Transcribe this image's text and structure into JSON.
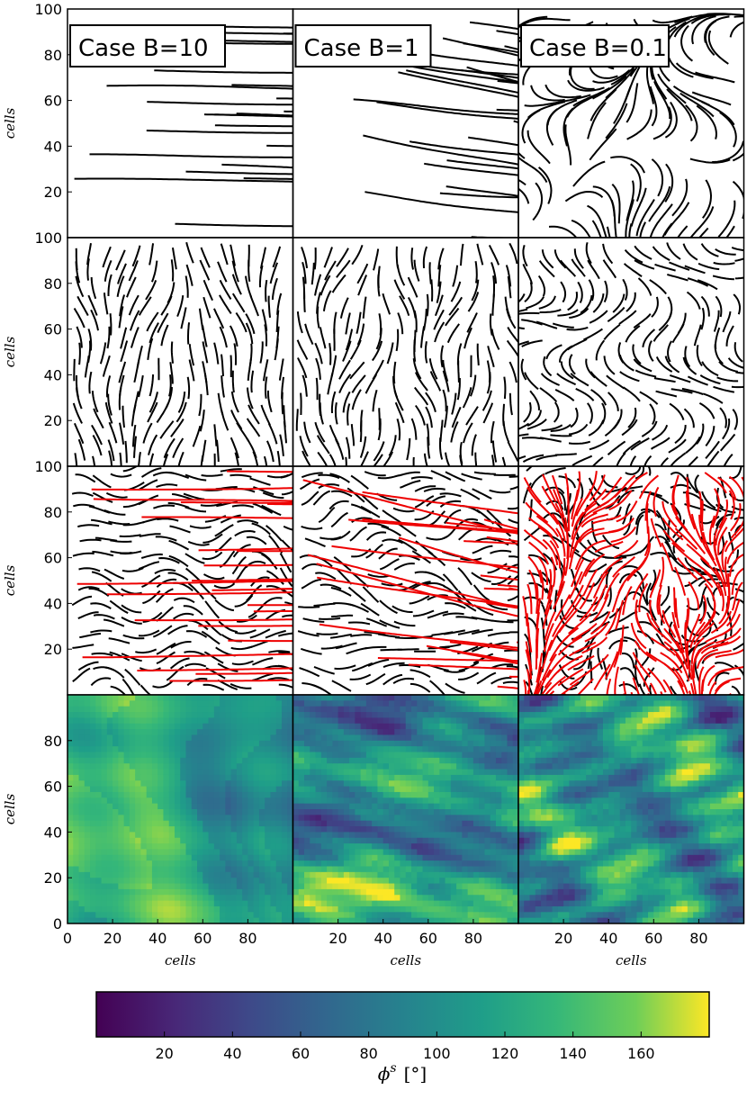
{
  "chart_data": {
    "type": "panel-grid",
    "columns": [
      {
        "title": "Case B=10"
      },
      {
        "title": "Case B=1"
      },
      {
        "title": "Case B=0.1"
      }
    ],
    "xlabel": "cells",
    "ylabel": "cells",
    "xlim": [
      0,
      100
    ],
    "ylim": [
      0,
      100
    ],
    "yticks": [
      20,
      40,
      60,
      80,
      100
    ],
    "heatmap_yticks": [
      0,
      20,
      40,
      60,
      80
    ],
    "heatmap_xticks_first": [
      0,
      20,
      40,
      60,
      80
    ],
    "heatmap_xticks": [
      20,
      40,
      60,
      80
    ],
    "colorbar": {
      "clim": [
        0,
        180
      ],
      "ticks": [
        20,
        40,
        60,
        80,
        100,
        120,
        140,
        160
      ],
      "symbol": "ϕ",
      "superscript": "s",
      "unit": "[°]"
    }
  }
}
